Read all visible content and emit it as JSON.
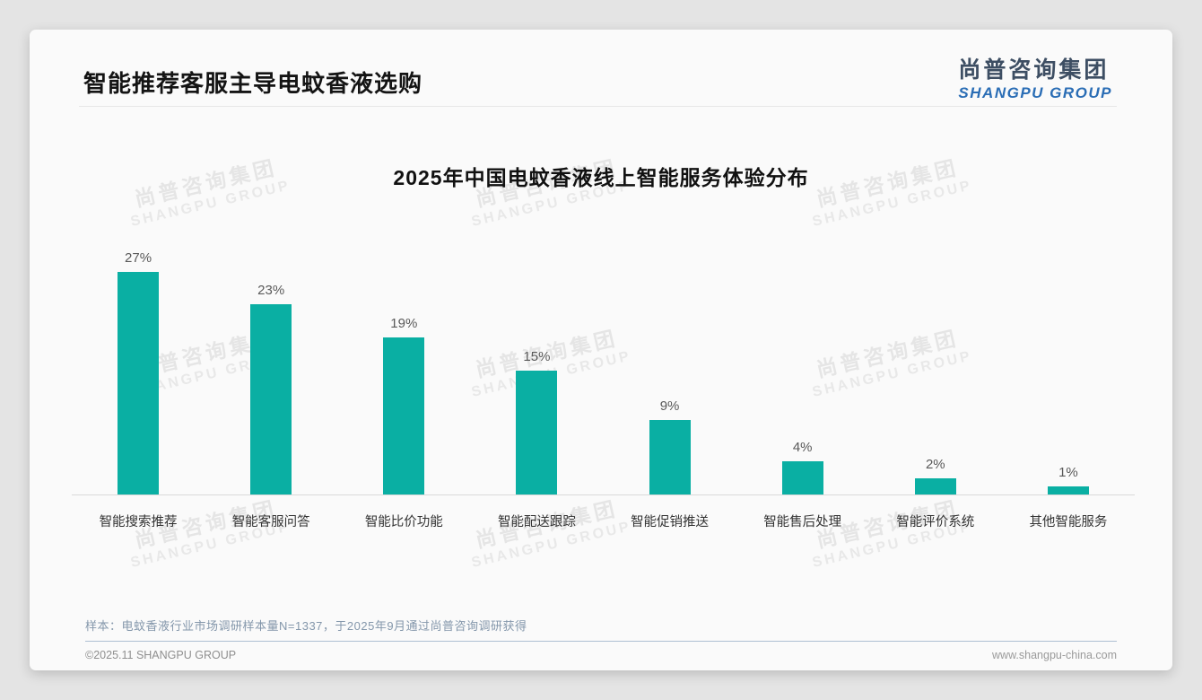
{
  "page": {
    "title": "智能推荐客服主导电蚊香液选购",
    "logo": {
      "cn": "尚普咨询集团",
      "en": "SHANGPU GROUP"
    },
    "watermark": {
      "cn": "尚普咨询集团",
      "en": "SHANGPU GROUP"
    },
    "note": "样本：电蚊香液行业市场调研样本量N=1337，于2025年9月通过尚普咨询调研获得",
    "footer": {
      "copyright": "©2025.11 SHANGPU GROUP",
      "website": "www.shangpu-china.com"
    }
  },
  "chart_data": {
    "type": "bar",
    "title": "2025年中国电蚊香液线上智能服务体验分布",
    "categories": [
      "智能搜索推荐",
      "智能客服问答",
      "智能比价功能",
      "智能配送跟踪",
      "智能促销推送",
      "智能售后处理",
      "智能评价系统",
      "其他智能服务"
    ],
    "values": [
      27,
      23,
      19,
      15,
      9,
      4,
      2,
      1
    ],
    "value_labels": [
      "27%",
      "23%",
      "19%",
      "15%",
      "9%",
      "4%",
      "2%",
      "1%"
    ],
    "unit": "%",
    "bar_color": "#0aafa3",
    "ylim": [
      0,
      27
    ],
    "grid": false,
    "legend": "none",
    "xlabel": "",
    "ylabel": ""
  }
}
